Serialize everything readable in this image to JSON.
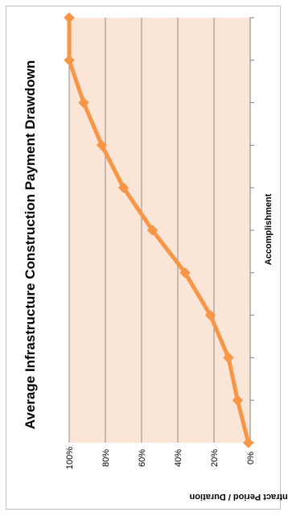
{
  "chart_data": {
    "type": "line",
    "title": "Average Infrastructure Construction Payment Drawdown",
    "xlabel": "Accomplishment",
    "ylabel": "Contract Period / Duration",
    "y_tick_labels": [
      "0%",
      "20%",
      "40%",
      "60%",
      "80%",
      "100%"
    ],
    "ylim": [
      0,
      100
    ],
    "xlim": [
      0,
      100
    ],
    "x_tick_values": [
      0,
      10,
      20,
      30,
      40,
      50,
      60,
      70,
      80,
      90,
      100
    ],
    "grid": true,
    "legend": "none",
    "orientation": "rotated-90-ccw",
    "colors": {
      "series": "#f79646",
      "plot_background": "#fbe5d6",
      "gridline": "#8c8c8c",
      "axis": "#808080",
      "text": "#000000"
    },
    "series": [
      {
        "x": [
          0,
          10,
          20,
          30,
          40,
          50,
          60,
          70,
          80,
          90,
          100
        ],
        "values": [
          1,
          7,
          12,
          22,
          36,
          54,
          70,
          82,
          92,
          100,
          100
        ]
      }
    ]
  }
}
